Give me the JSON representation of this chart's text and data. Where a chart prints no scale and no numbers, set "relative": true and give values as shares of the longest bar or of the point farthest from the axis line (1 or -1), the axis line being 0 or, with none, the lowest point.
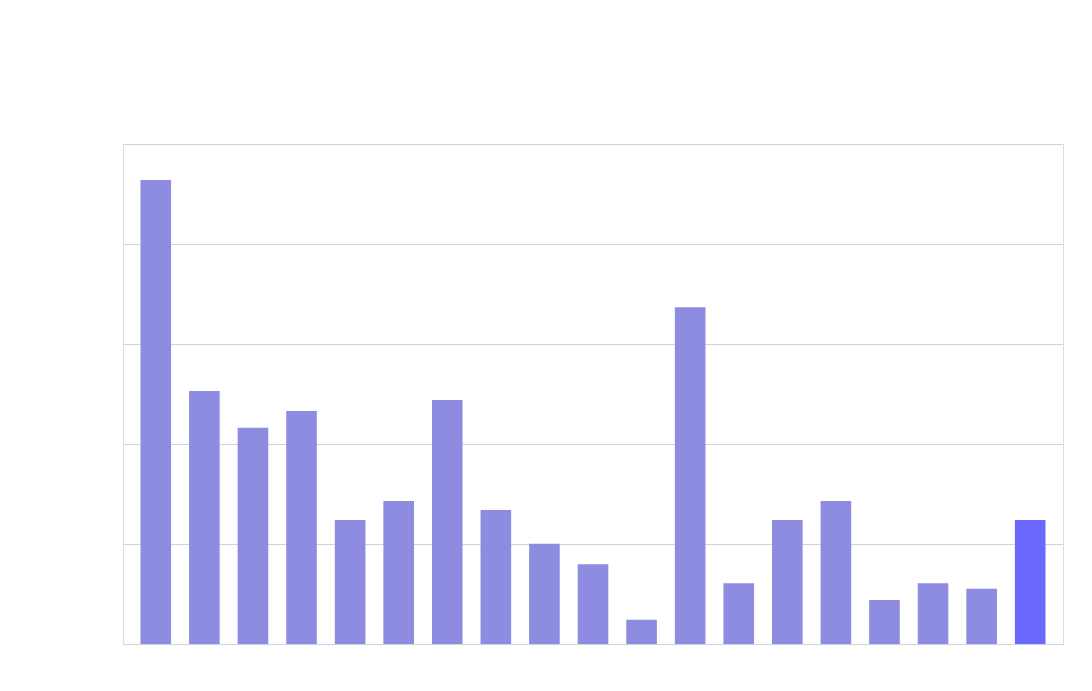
{
  "chart_data": {
    "type": "bar",
    "relative": true,
    "grid": "y",
    "categories": [
      null,
      null,
      null,
      null,
      null,
      null,
      null,
      null,
      null,
      null,
      null,
      null,
      null,
      null,
      null,
      null,
      null,
      null,
      null
    ],
    "values": [
      1,
      0.545,
      0.466,
      0.502,
      0.267,
      0.308,
      0.526,
      0.289,
      0.216,
      0.172,
      0.052,
      0.726,
      0.131,
      0.267,
      0.308,
      0.095,
      0.131,
      0.119,
      0.267
    ],
    "colors": [
      "#8d8ce0",
      "#8d8ce0",
      "#8d8ce0",
      "#8d8ce0",
      "#8d8ce0",
      "#8d8ce0",
      "#8d8ce0",
      "#8d8ce0",
      "#8d8ce0",
      "#8d8ce0",
      "#8d8ce0",
      "#8d8ce0",
      "#8d8ce0",
      "#8d8ce0",
      "#8d8ce0",
      "#8d8ce0",
      "#8d8ce0",
      "#8d8ce0",
      "#6b68ff"
    ]
  }
}
